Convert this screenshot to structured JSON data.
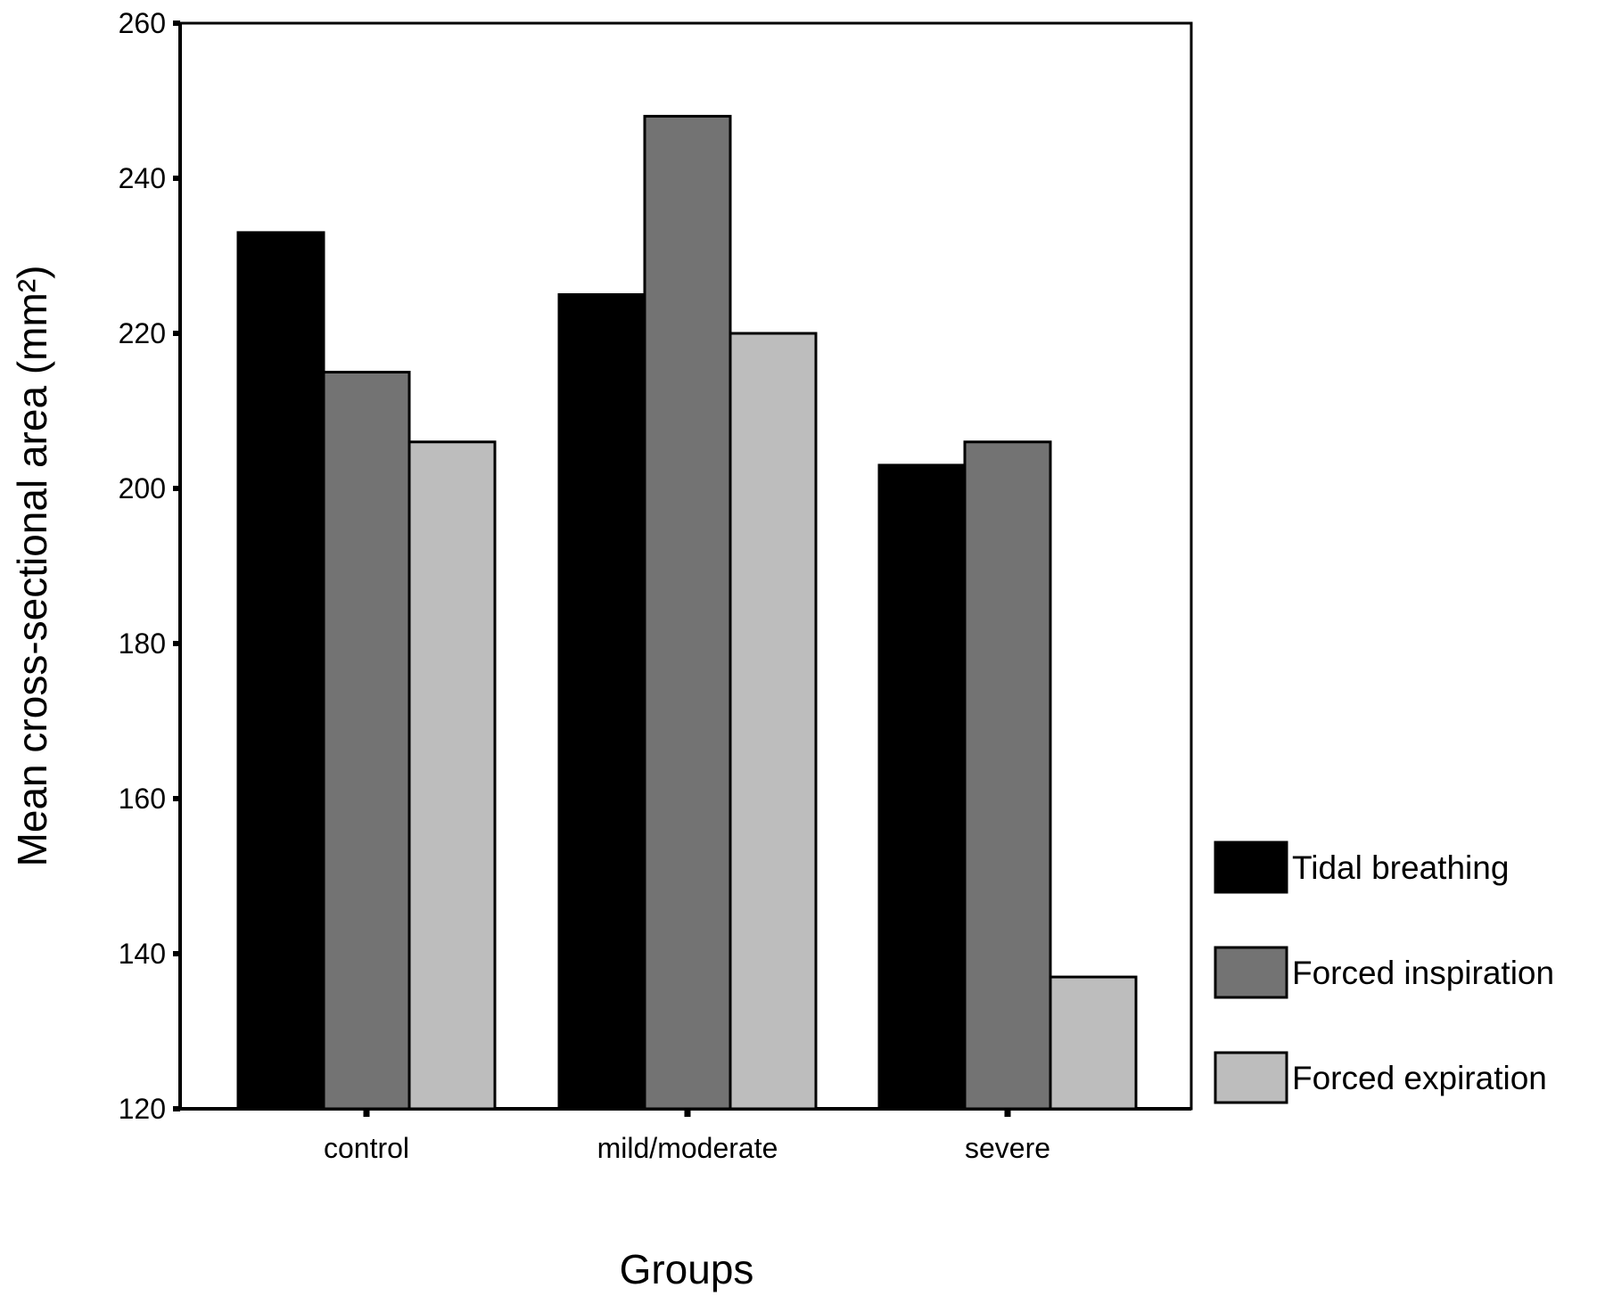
{
  "chart_data": {
    "type": "bar",
    "xlabel": "Groups",
    "ylabel": "Mean cross-sectional area (mm²)",
    "categories": [
      "control",
      "mild/moderate",
      "severe"
    ],
    "series": [
      {
        "name": "Tidal breathing",
        "color": "#000000",
        "values": [
          233,
          225,
          203
        ]
      },
      {
        "name": "Forced inspiration",
        "color": "#737373",
        "values": [
          215,
          248,
          206
        ]
      },
      {
        "name": "Forced expiration",
        "color": "#bdbdbd",
        "values": [
          206,
          220,
          137
        ]
      }
    ],
    "ylim": [
      120,
      260
    ],
    "yticks": [
      120,
      140,
      160,
      180,
      200,
      220,
      240,
      260
    ],
    "grid": false,
    "legend_position": "right"
  }
}
